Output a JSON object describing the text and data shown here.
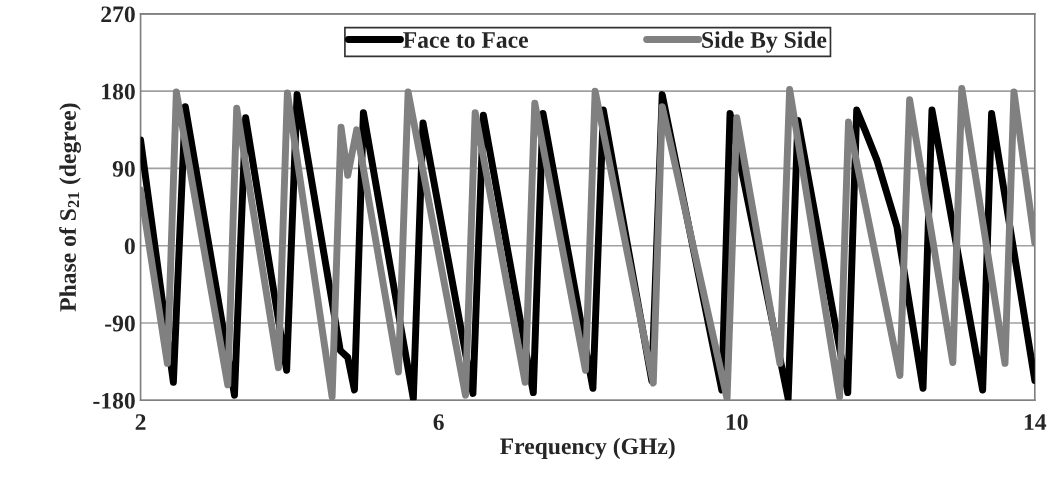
{
  "chart_data": {
    "type": "line",
    "xlabel": "Frequency (GHz)",
    "ylabel": "Phase of S$_{21}$ (degree)",
    "xlim": [
      2,
      14
    ],
    "xticks": [
      2,
      6,
      10,
      14
    ],
    "ylim": [
      -180,
      270
    ],
    "yticks": [
      -180,
      -90,
      0,
      90,
      180,
      270
    ],
    "grid": "y",
    "legend": "top",
    "marker": "none",
    "line_style": "solid",
    "series": [
      {
        "name": "Face to Face",
        "color": "#000000",
        "x": [
          2.0,
          2.44,
          2.6,
          3.26,
          3.41,
          3.96,
          4.1,
          4.68,
          4.78,
          4.87,
          4.99,
          5.66,
          5.79,
          6.46,
          6.6,
          7.27,
          7.4,
          8.07,
          8.21,
          8.86,
          9.0,
          9.8,
          9.91,
          10.69,
          10.82,
          11.49,
          11.61,
          11.72,
          11.88,
          12.15,
          12.5,
          12.62,
          13.3,
          13.42,
          14.0
        ],
        "values": [
          123,
          -159,
          162,
          -174,
          149,
          -145,
          176,
          -122,
          -130,
          -168,
          155,
          -178,
          143,
          -172,
          152,
          -171,
          154,
          -166,
          158,
          -157,
          176,
          -168,
          154,
          -178,
          146,
          -171,
          158,
          135,
          100,
          22,
          -166,
          158,
          -168,
          154,
          -157
        ]
      },
      {
        "name": "Side By Side",
        "color": "#808080",
        "x": [
          2.0,
          2.36,
          2.48,
          3.17,
          3.29,
          3.85,
          3.97,
          4.57,
          4.69,
          4.78,
          4.9,
          5.46,
          5.59,
          6.36,
          6.49,
          7.16,
          7.29,
          7.97,
          8.1,
          8.88,
          9.0,
          9.87,
          10.0,
          10.58,
          10.71,
          11.38,
          11.5,
          12.19,
          12.32,
          12.9,
          13.02,
          13.6,
          13.72,
          14.0
        ],
        "values": [
          65,
          -137,
          179,
          -162,
          160,
          -142,
          178,
          -176,
          138,
          82,
          135,
          -147,
          179,
          -174,
          155,
          -159,
          166,
          -145,
          180,
          -160,
          162,
          -178,
          149,
          -137,
          182,
          -176,
          144,
          -151,
          170,
          -136,
          183,
          -137,
          179,
          3
        ]
      }
    ]
  }
}
